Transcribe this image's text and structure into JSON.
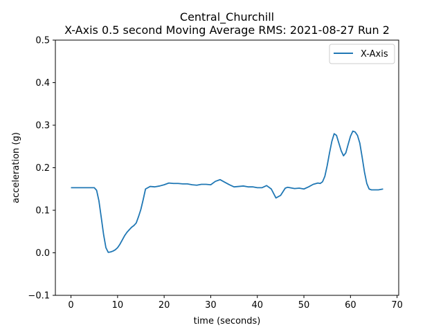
{
  "chart_data": {
    "type": "line",
    "title": "Central_Churchill",
    "subtitle": "X-Axis 0.5 second Moving Average RMS: 2021-08-27 Run 2",
    "xlabel": "time (seconds)",
    "ylabel": "acceleration (g)",
    "xlim": [
      -3.35,
      70.35
    ],
    "ylim": [
      -0.1,
      0.5
    ],
    "xticks": [
      0,
      10,
      20,
      30,
      40,
      50,
      60,
      70
    ],
    "yticks": [
      -0.1,
      0.0,
      0.1,
      0.2,
      0.3,
      0.4,
      0.5
    ],
    "xtick_labels": [
      "0",
      "10",
      "20",
      "30",
      "40",
      "50",
      "60",
      "70"
    ],
    "ytick_labels": [
      "−0.1",
      "0.0",
      "0.1",
      "0.2",
      "0.3",
      "0.4",
      "0.5"
    ],
    "grid": false,
    "legend_position": "top-right",
    "series": [
      {
        "name": "X-Axis",
        "color": "#1f77b4",
        "x": [
          0,
          1,
          2,
          3,
          4,
          4.5,
          5,
          5.5,
          6,
          6.5,
          7,
          7.5,
          8,
          8.5,
          9,
          9.5,
          10,
          10.5,
          11,
          11.5,
          12,
          12.5,
          13,
          13.5,
          14,
          14.5,
          15,
          15.5,
          16,
          17,
          18,
          19,
          20,
          21,
          22,
          23,
          24,
          25,
          26,
          27,
          28,
          29,
          30,
          31,
          32,
          33,
          34,
          35,
          36,
          37,
          38,
          39,
          40,
          41,
          42,
          43,
          44,
          45,
          46,
          46.5,
          47,
          48,
          49,
          50,
          51,
          52,
          53,
          53.5,
          54,
          54.5,
          55,
          55.5,
          56,
          56.5,
          57,
          57.5,
          58,
          58.5,
          59,
          59.5,
          60,
          60.5,
          61,
          61.5,
          62,
          62.5,
          63,
          63.5,
          64,
          64.5,
          65,
          66,
          67
        ],
        "y": [
          0.153,
          0.153,
          0.153,
          0.153,
          0.153,
          0.153,
          0.153,
          0.147,
          0.122,
          0.083,
          0.043,
          0.012,
          0.001,
          0.002,
          0.004,
          0.007,
          0.012,
          0.02,
          0.03,
          0.04,
          0.048,
          0.054,
          0.06,
          0.064,
          0.07,
          0.085,
          0.102,
          0.125,
          0.15,
          0.156,
          0.155,
          0.157,
          0.16,
          0.164,
          0.163,
          0.163,
          0.162,
          0.162,
          0.16,
          0.159,
          0.161,
          0.161,
          0.16,
          0.168,
          0.172,
          0.166,
          0.16,
          0.155,
          0.156,
          0.157,
          0.155,
          0.155,
          0.153,
          0.153,
          0.158,
          0.15,
          0.129,
          0.135,
          0.152,
          0.154,
          0.153,
          0.151,
          0.152,
          0.15,
          0.155,
          0.161,
          0.164,
          0.163,
          0.167,
          0.18,
          0.205,
          0.235,
          0.262,
          0.28,
          0.276,
          0.258,
          0.24,
          0.228,
          0.235,
          0.255,
          0.274,
          0.286,
          0.284,
          0.276,
          0.258,
          0.225,
          0.19,
          0.163,
          0.15,
          0.148,
          0.148,
          0.148,
          0.15
        ]
      }
    ]
  }
}
